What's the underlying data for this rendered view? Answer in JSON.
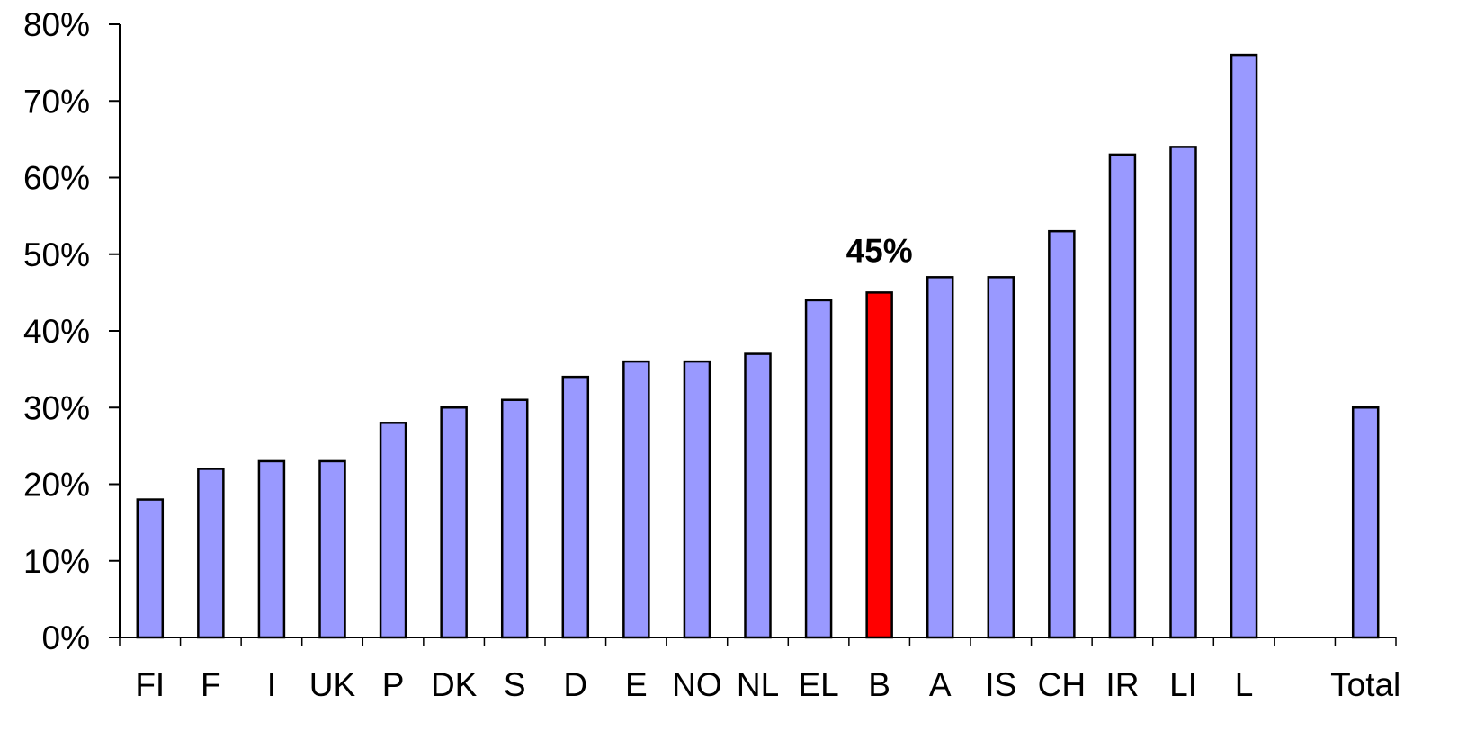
{
  "chart_data": {
    "type": "bar",
    "title": "",
    "xlabel": "",
    "ylabel": "",
    "categories": [
      "FI",
      "F",
      "I",
      "UK",
      "P",
      "DK",
      "S",
      "D",
      "E",
      "NO",
      "NL",
      "EL",
      "B",
      "A",
      "IS",
      "CH",
      "IR",
      "LI",
      "L",
      "",
      "Total"
    ],
    "values": [
      18,
      22,
      23,
      23,
      28,
      30,
      31,
      34,
      36,
      36,
      37,
      44,
      45,
      47,
      47,
      53,
      63,
      64,
      76,
      null,
      30
    ],
    "ylim": [
      0,
      80
    ],
    "yticks": [
      0,
      10,
      20,
      30,
      40,
      50,
      60,
      70,
      80
    ],
    "ytick_labels": [
      "0%",
      "10%",
      "20%",
      "30%",
      "40%",
      "50%",
      "60%",
      "70%",
      "80%"
    ],
    "grid": false,
    "legend": "none",
    "colors": {
      "bar": "#9999ff",
      "highlight": "#ff0000",
      "outline": "#000000",
      "axis": "#000000"
    },
    "highlight_category": "B",
    "annotations": [
      {
        "category": "B",
        "text": "45%"
      }
    ]
  }
}
